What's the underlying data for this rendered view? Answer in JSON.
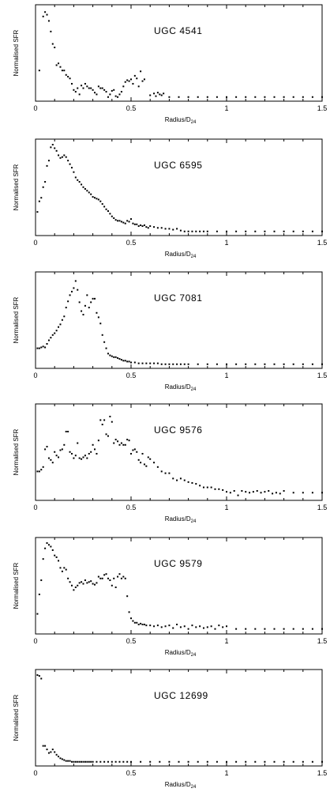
{
  "chart_data": [
    {
      "type": "scatter",
      "title": "UGC 4541",
      "xlabel": "Radius/D",
      "xlabel_sub": "24",
      "ylabel": "Normalised SFR",
      "xlim": [
        0,
        1.5
      ],
      "ylim": [
        0,
        1
      ],
      "xticks": [
        "0",
        "0.5",
        "1",
        "1.5"
      ],
      "x": [
        0.02,
        0.04,
        0.05,
        0.06,
        0.07,
        0.08,
        0.09,
        0.1,
        0.11,
        0.12,
        0.13,
        0.14,
        0.15,
        0.16,
        0.17,
        0.18,
        0.19,
        0.2,
        0.21,
        0.22,
        0.23,
        0.24,
        0.25,
        0.26,
        0.27,
        0.28,
        0.29,
        0.3,
        0.31,
        0.32,
        0.33,
        0.34,
        0.35,
        0.36,
        0.37,
        0.38,
        0.39,
        0.4,
        0.41,
        0.42,
        0.43,
        0.44,
        0.45,
        0.46,
        0.47,
        0.48,
        0.49,
        0.5,
        0.51,
        0.52,
        0.53,
        0.54,
        0.55,
        0.56,
        0.57,
        0.6,
        0.62,
        0.63,
        0.64,
        0.65,
        0.66,
        0.67,
        0.7,
        0.75,
        0.8,
        0.85,
        0.9,
        0.95,
        1.0,
        1.05,
        1.1,
        1.15,
        1.2,
        1.25,
        1.3,
        1.35,
        1.4,
        1.45,
        1.5
      ],
      "y": [
        0.32,
        0.93,
        0.98,
        0.95,
        0.88,
        0.76,
        0.62,
        0.58,
        0.38,
        0.4,
        0.36,
        0.32,
        0.32,
        0.27,
        0.25,
        0.23,
        0.17,
        0.1,
        0.08,
        0.12,
        0.05,
        0.15,
        0.12,
        0.17,
        0.14,
        0.12,
        0.12,
        0.1,
        0.07,
        0.05,
        0.14,
        0.12,
        0.12,
        0.1,
        0.08,
        0.02,
        0.05,
        0.09,
        0.1,
        0.03,
        0.02,
        0.05,
        0.08,
        0.14,
        0.19,
        0.21,
        0.2,
        0.22,
        0.17,
        0.26,
        0.23,
        0.14,
        0.31,
        0.2,
        0.22,
        0.04,
        0.06,
        0.03,
        0.07,
        0.05,
        0.04,
        0.06,
        0.02,
        0.02,
        0.02,
        0.02,
        0.02,
        0.02,
        0.02,
        0.02,
        0.02,
        0.02,
        0.02,
        0.02,
        0.02,
        0.02,
        0.02,
        0.02,
        0.02
      ]
    },
    {
      "type": "scatter",
      "title": "UGC 6595",
      "xlabel": "Radius/D",
      "xlabel_sub": "24",
      "ylabel": "Normalised SFR",
      "xlim": [
        0,
        1.5
      ],
      "ylim": [
        0,
        1
      ],
      "xticks": [
        "0",
        "0.5",
        "1",
        "1.5"
      ],
      "x": [
        0.01,
        0.02,
        0.03,
        0.04,
        0.05,
        0.06,
        0.07,
        0.08,
        0.09,
        0.1,
        0.11,
        0.12,
        0.13,
        0.14,
        0.15,
        0.16,
        0.17,
        0.18,
        0.19,
        0.2,
        0.21,
        0.22,
        0.23,
        0.24,
        0.25,
        0.26,
        0.27,
        0.28,
        0.29,
        0.3,
        0.31,
        0.32,
        0.33,
        0.34,
        0.35,
        0.36,
        0.37,
        0.38,
        0.39,
        0.4,
        0.41,
        0.42,
        0.43,
        0.44,
        0.45,
        0.46,
        0.47,
        0.48,
        0.49,
        0.5,
        0.51,
        0.52,
        0.53,
        0.54,
        0.55,
        0.56,
        0.57,
        0.58,
        0.59,
        0.6,
        0.62,
        0.64,
        0.66,
        0.68,
        0.7,
        0.72,
        0.74,
        0.76,
        0.78,
        0.8,
        0.82,
        0.84,
        0.86,
        0.88,
        0.9,
        0.95,
        1.0,
        1.05,
        1.1,
        1.15,
        1.2,
        1.25,
        1.3,
        1.35,
        1.4,
        1.45,
        1.5
      ],
      "y": [
        0.24,
        0.36,
        0.4,
        0.52,
        0.58,
        0.76,
        0.82,
        0.97,
        1.0,
        0.96,
        0.93,
        0.88,
        0.85,
        0.86,
        0.88,
        0.86,
        0.82,
        0.78,
        0.74,
        0.69,
        0.63,
        0.6,
        0.58,
        0.55,
        0.52,
        0.5,
        0.48,
        0.46,
        0.44,
        0.41,
        0.4,
        0.39,
        0.38,
        0.36,
        0.33,
        0.3,
        0.27,
        0.25,
        0.22,
        0.19,
        0.17,
        0.15,
        0.14,
        0.14,
        0.13,
        0.12,
        0.11,
        0.14,
        0.13,
        0.16,
        0.11,
        0.1,
        0.1,
        0.08,
        0.09,
        0.08,
        0.09,
        0.07,
        0.06,
        0.08,
        0.07,
        0.06,
        0.06,
        0.05,
        0.05,
        0.04,
        0.05,
        0.03,
        0.02,
        0.02,
        0.02,
        0.02,
        0.02,
        0.02,
        0.02,
        0.02,
        0.02,
        0.02,
        0.02,
        0.02,
        0.02,
        0.02,
        0.02,
        0.02,
        0.02,
        0.02,
        0.02
      ]
    },
    {
      "type": "scatter",
      "title": "UGC 7081",
      "xlabel": "Radius/D",
      "xlabel_sub": "24",
      "ylabel": "Normalised SFR",
      "xlim": [
        0,
        1.5
      ],
      "ylim": [
        0,
        1
      ],
      "xticks": [
        "0",
        "0.5",
        "1",
        "1.5"
      ],
      "x": [
        0.01,
        0.02,
        0.03,
        0.04,
        0.05,
        0.06,
        0.07,
        0.08,
        0.09,
        0.1,
        0.11,
        0.12,
        0.13,
        0.14,
        0.15,
        0.16,
        0.17,
        0.18,
        0.19,
        0.2,
        0.21,
        0.22,
        0.23,
        0.24,
        0.25,
        0.26,
        0.27,
        0.28,
        0.29,
        0.3,
        0.31,
        0.32,
        0.33,
        0.34,
        0.35,
        0.36,
        0.37,
        0.38,
        0.39,
        0.4,
        0.41,
        0.42,
        0.43,
        0.44,
        0.45,
        0.46,
        0.47,
        0.48,
        0.49,
        0.5,
        0.52,
        0.54,
        0.56,
        0.58,
        0.6,
        0.62,
        0.64,
        0.66,
        0.68,
        0.7,
        0.72,
        0.74,
        0.76,
        0.78,
        0.8,
        0.85,
        0.9,
        0.95,
        1.0,
        1.05,
        1.1,
        1.15,
        1.2,
        1.25,
        1.3,
        1.35,
        1.4,
        1.45,
        1.5
      ],
      "y": [
        0.2,
        0.2,
        0.21,
        0.22,
        0.21,
        0.25,
        0.29,
        0.32,
        0.35,
        0.37,
        0.4,
        0.44,
        0.47,
        0.52,
        0.56,
        0.66,
        0.73,
        0.8,
        0.84,
        0.88,
        0.96,
        0.86,
        0.72,
        0.62,
        0.58,
        0.68,
        0.8,
        0.66,
        0.72,
        0.76,
        0.76,
        0.6,
        0.55,
        0.48,
        0.35,
        0.27,
        0.2,
        0.14,
        0.12,
        0.11,
        0.1,
        0.1,
        0.09,
        0.08,
        0.07,
        0.06,
        0.06,
        0.05,
        0.05,
        0.04,
        0.04,
        0.03,
        0.03,
        0.03,
        0.03,
        0.03,
        0.03,
        0.02,
        0.02,
        0.02,
        0.02,
        0.02,
        0.02,
        0.02,
        0.02,
        0.02,
        0.02,
        0.02,
        0.02,
        0.02,
        0.02,
        0.02,
        0.02,
        0.02,
        0.02,
        0.02,
        0.02,
        0.02,
        0.02
      ]
    },
    {
      "type": "scatter",
      "title": "UGC 9576",
      "xlabel": "Radius/D",
      "xlabel_sub": "24",
      "ylabel": "Normalised SFR",
      "xlim": [
        0,
        1.5
      ],
      "ylim": [
        0,
        1
      ],
      "xticks": [
        "0",
        "0.5",
        "1",
        "1.5"
      ],
      "x": [
        0.01,
        0.02,
        0.03,
        0.04,
        0.05,
        0.06,
        0.07,
        0.08,
        0.09,
        0.1,
        0.11,
        0.12,
        0.13,
        0.14,
        0.15,
        0.16,
        0.17,
        0.18,
        0.19,
        0.2,
        0.21,
        0.22,
        0.23,
        0.24,
        0.25,
        0.26,
        0.27,
        0.28,
        0.29,
        0.3,
        0.31,
        0.32,
        0.33,
        0.34,
        0.35,
        0.36,
        0.37,
        0.38,
        0.39,
        0.4,
        0.41,
        0.42,
        0.43,
        0.44,
        0.45,
        0.46,
        0.47,
        0.48,
        0.49,
        0.5,
        0.51,
        0.52,
        0.53,
        0.54,
        0.55,
        0.56,
        0.57,
        0.58,
        0.59,
        0.6,
        0.62,
        0.64,
        0.66,
        0.68,
        0.7,
        0.72,
        0.74,
        0.76,
        0.78,
        0.8,
        0.82,
        0.84,
        0.86,
        0.88,
        0.9,
        0.92,
        0.94,
        0.96,
        0.98,
        1.0,
        1.02,
        1.04,
        1.06,
        1.08,
        1.1,
        1.12,
        1.14,
        1.16,
        1.18,
        1.2,
        1.22,
        1.24,
        1.26,
        1.28,
        1.3,
        1.35,
        1.4,
        1.45,
        1.5
      ],
      "y": [
        0.3,
        0.3,
        0.32,
        0.35,
        0.55,
        0.58,
        0.45,
        0.43,
        0.4,
        0.52,
        0.48,
        0.46,
        0.54,
        0.55,
        0.6,
        0.75,
        0.75,
        0.52,
        0.5,
        0.45,
        0.48,
        0.62,
        0.45,
        0.44,
        0.46,
        0.48,
        0.45,
        0.5,
        0.52,
        0.6,
        0.55,
        0.5,
        0.65,
        0.88,
        0.83,
        0.88,
        0.72,
        0.7,
        0.92,
        0.86,
        0.62,
        0.66,
        0.64,
        0.6,
        0.62,
        0.6,
        0.6,
        0.66,
        0.65,
        0.5,
        0.54,
        0.55,
        0.52,
        0.43,
        0.4,
        0.5,
        0.38,
        0.36,
        0.46,
        0.44,
        0.4,
        0.35,
        0.3,
        0.28,
        0.28,
        0.22,
        0.2,
        0.22,
        0.2,
        0.18,
        0.17,
        0.16,
        0.14,
        0.12,
        0.12,
        0.12,
        0.1,
        0.1,
        0.09,
        0.07,
        0.06,
        0.08,
        0.03,
        0.08,
        0.07,
        0.06,
        0.07,
        0.08,
        0.06,
        0.07,
        0.08,
        0.05,
        0.06,
        0.05,
        0.08,
        0.06,
        0.06,
        0.06,
        0.06
      ]
    },
    {
      "type": "scatter",
      "title": "UGC 9579",
      "xlabel": "Radius/D",
      "xlabel_sub": "24",
      "ylabel": "Normalised SFR",
      "xlim": [
        0,
        1.5
      ],
      "ylim": [
        0,
        1
      ],
      "xticks": [
        "0",
        "0.5",
        "1",
        "1.5"
      ],
      "x": [
        0.01,
        0.02,
        0.03,
        0.04,
        0.05,
        0.06,
        0.07,
        0.08,
        0.09,
        0.1,
        0.11,
        0.12,
        0.13,
        0.14,
        0.15,
        0.16,
        0.17,
        0.18,
        0.19,
        0.2,
        0.21,
        0.22,
        0.23,
        0.24,
        0.25,
        0.26,
        0.27,
        0.28,
        0.29,
        0.3,
        0.31,
        0.32,
        0.33,
        0.34,
        0.35,
        0.36,
        0.37,
        0.38,
        0.39,
        0.4,
        0.41,
        0.42,
        0.43,
        0.44,
        0.45,
        0.46,
        0.47,
        0.48,
        0.49,
        0.5,
        0.51,
        0.52,
        0.53,
        0.54,
        0.55,
        0.56,
        0.57,
        0.58,
        0.6,
        0.62,
        0.64,
        0.66,
        0.68,
        0.7,
        0.72,
        0.74,
        0.76,
        0.78,
        0.8,
        0.82,
        0.84,
        0.86,
        0.88,
        0.9,
        0.92,
        0.94,
        0.96,
        0.98,
        1.0,
        1.05,
        1.1,
        1.15,
        1.2,
        1.25,
        1.3,
        1.35,
        1.4,
        1.45,
        1.5
      ],
      "y": [
        0.2,
        0.42,
        0.58,
        0.82,
        0.94,
        1.0,
        0.98,
        0.96,
        0.92,
        0.86,
        0.84,
        0.8,
        0.72,
        0.68,
        0.72,
        0.7,
        0.6,
        0.56,
        0.52,
        0.47,
        0.5,
        0.52,
        0.55,
        0.56,
        0.54,
        0.58,
        0.55,
        0.56,
        0.57,
        0.54,
        0.53,
        0.55,
        0.62,
        0.6,
        0.6,
        0.64,
        0.65,
        0.6,
        0.58,
        0.52,
        0.6,
        0.5,
        0.62,
        0.65,
        0.6,
        0.62,
        0.6,
        0.4,
        0.22,
        0.15,
        0.12,
        0.1,
        0.1,
        0.08,
        0.09,
        0.08,
        0.08,
        0.07,
        0.07,
        0.06,
        0.07,
        0.05,
        0.06,
        0.07,
        0.04,
        0.08,
        0.05,
        0.06,
        0.03,
        0.07,
        0.05,
        0.06,
        0.04,
        0.05,
        0.06,
        0.03,
        0.07,
        0.05,
        0.06,
        0.03,
        0.03,
        0.03,
        0.03,
        0.03,
        0.03,
        0.03,
        0.03,
        0.03,
        0.03
      ]
    },
    {
      "type": "scatter",
      "title": "UGC 12699",
      "xlabel": "Radius/D",
      "xlabel_sub": "24",
      "ylabel": "Normalised SFR",
      "xlim": [
        0,
        1.5
      ],
      "ylim": [
        0,
        1
      ],
      "xticks": [
        "0",
        "0.5",
        "1",
        "1.5"
      ],
      "x": [
        0.01,
        0.02,
        0.03,
        0.04,
        0.05,
        0.06,
        0.07,
        0.08,
        0.09,
        0.1,
        0.11,
        0.12,
        0.13,
        0.14,
        0.15,
        0.16,
        0.17,
        0.18,
        0.19,
        0.2,
        0.21,
        0.22,
        0.23,
        0.24,
        0.25,
        0.26,
        0.27,
        0.28,
        0.29,
        0.3,
        0.32,
        0.34,
        0.36,
        0.38,
        0.4,
        0.42,
        0.44,
        0.46,
        0.48,
        0.5,
        0.55,
        0.6,
        0.65,
        0.7,
        0.75,
        0.8,
        0.85,
        0.9,
        0.95,
        1.0,
        1.05,
        1.1,
        1.15,
        1.2,
        1.25,
        1.3,
        1.35,
        1.4,
        1.45,
        1.5
      ],
      "y": [
        1.0,
        0.99,
        0.96,
        0.2,
        0.2,
        0.16,
        0.12,
        0.13,
        0.16,
        0.13,
        0.1,
        0.08,
        0.06,
        0.05,
        0.04,
        0.03,
        0.03,
        0.03,
        0.02,
        0.02,
        0.02,
        0.02,
        0.02,
        0.02,
        0.02,
        0.02,
        0.02,
        0.02,
        0.02,
        0.02,
        0.02,
        0.02,
        0.02,
        0.02,
        0.02,
        0.02,
        0.02,
        0.02,
        0.02,
        0.02,
        0.02,
        0.02,
        0.02,
        0.02,
        0.02,
        0.02,
        0.02,
        0.02,
        0.02,
        0.02,
        0.02,
        0.02,
        0.02,
        0.02,
        0.02,
        0.02,
        0.02,
        0.02,
        0.02,
        0.02
      ]
    }
  ]
}
